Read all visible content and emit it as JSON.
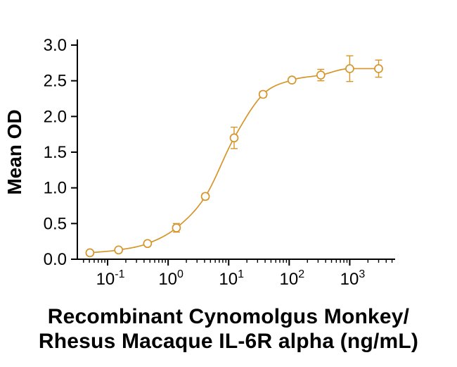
{
  "chart_data": {
    "type": "scatter",
    "subtype": "dose-response-curve-with-error-bars",
    "x": [
      0.051,
      0.152,
      0.457,
      1.37,
      4.12,
      12.3,
      37,
      111,
      333,
      1000,
      3000
    ],
    "y": [
      0.09,
      0.13,
      0.22,
      0.44,
      0.88,
      1.7,
      2.31,
      2.51,
      2.58,
      2.67,
      2.67
    ],
    "y_err": [
      0.02,
      0.02,
      0.03,
      0.06,
      0.04,
      0.15,
      0.04,
      0.03,
      0.08,
      0.18,
      0.12
    ],
    "x_scale": "log",
    "x_ticks": [
      0.1,
      1,
      10,
      100,
      1000
    ],
    "y_ticks": [
      "0.0",
      "0.5",
      "1.0",
      "1.5",
      "2.0",
      "2.5",
      "3.0"
    ],
    "ylim": [
      0,
      3.0
    ],
    "xlim_log": [
      -1.5,
      3.75
    ],
    "ylabel": "Mean OD",
    "xlabel_line1": "Recombinant Cynomolgus Monkey/",
    "xlabel_line2": "Rhesus Macaque IL-6R alpha (ng/mL)",
    "series_color": "#D6952B",
    "axis_color": "#000000",
    "marker": "open-circle",
    "legend": "none",
    "grid": "off"
  }
}
